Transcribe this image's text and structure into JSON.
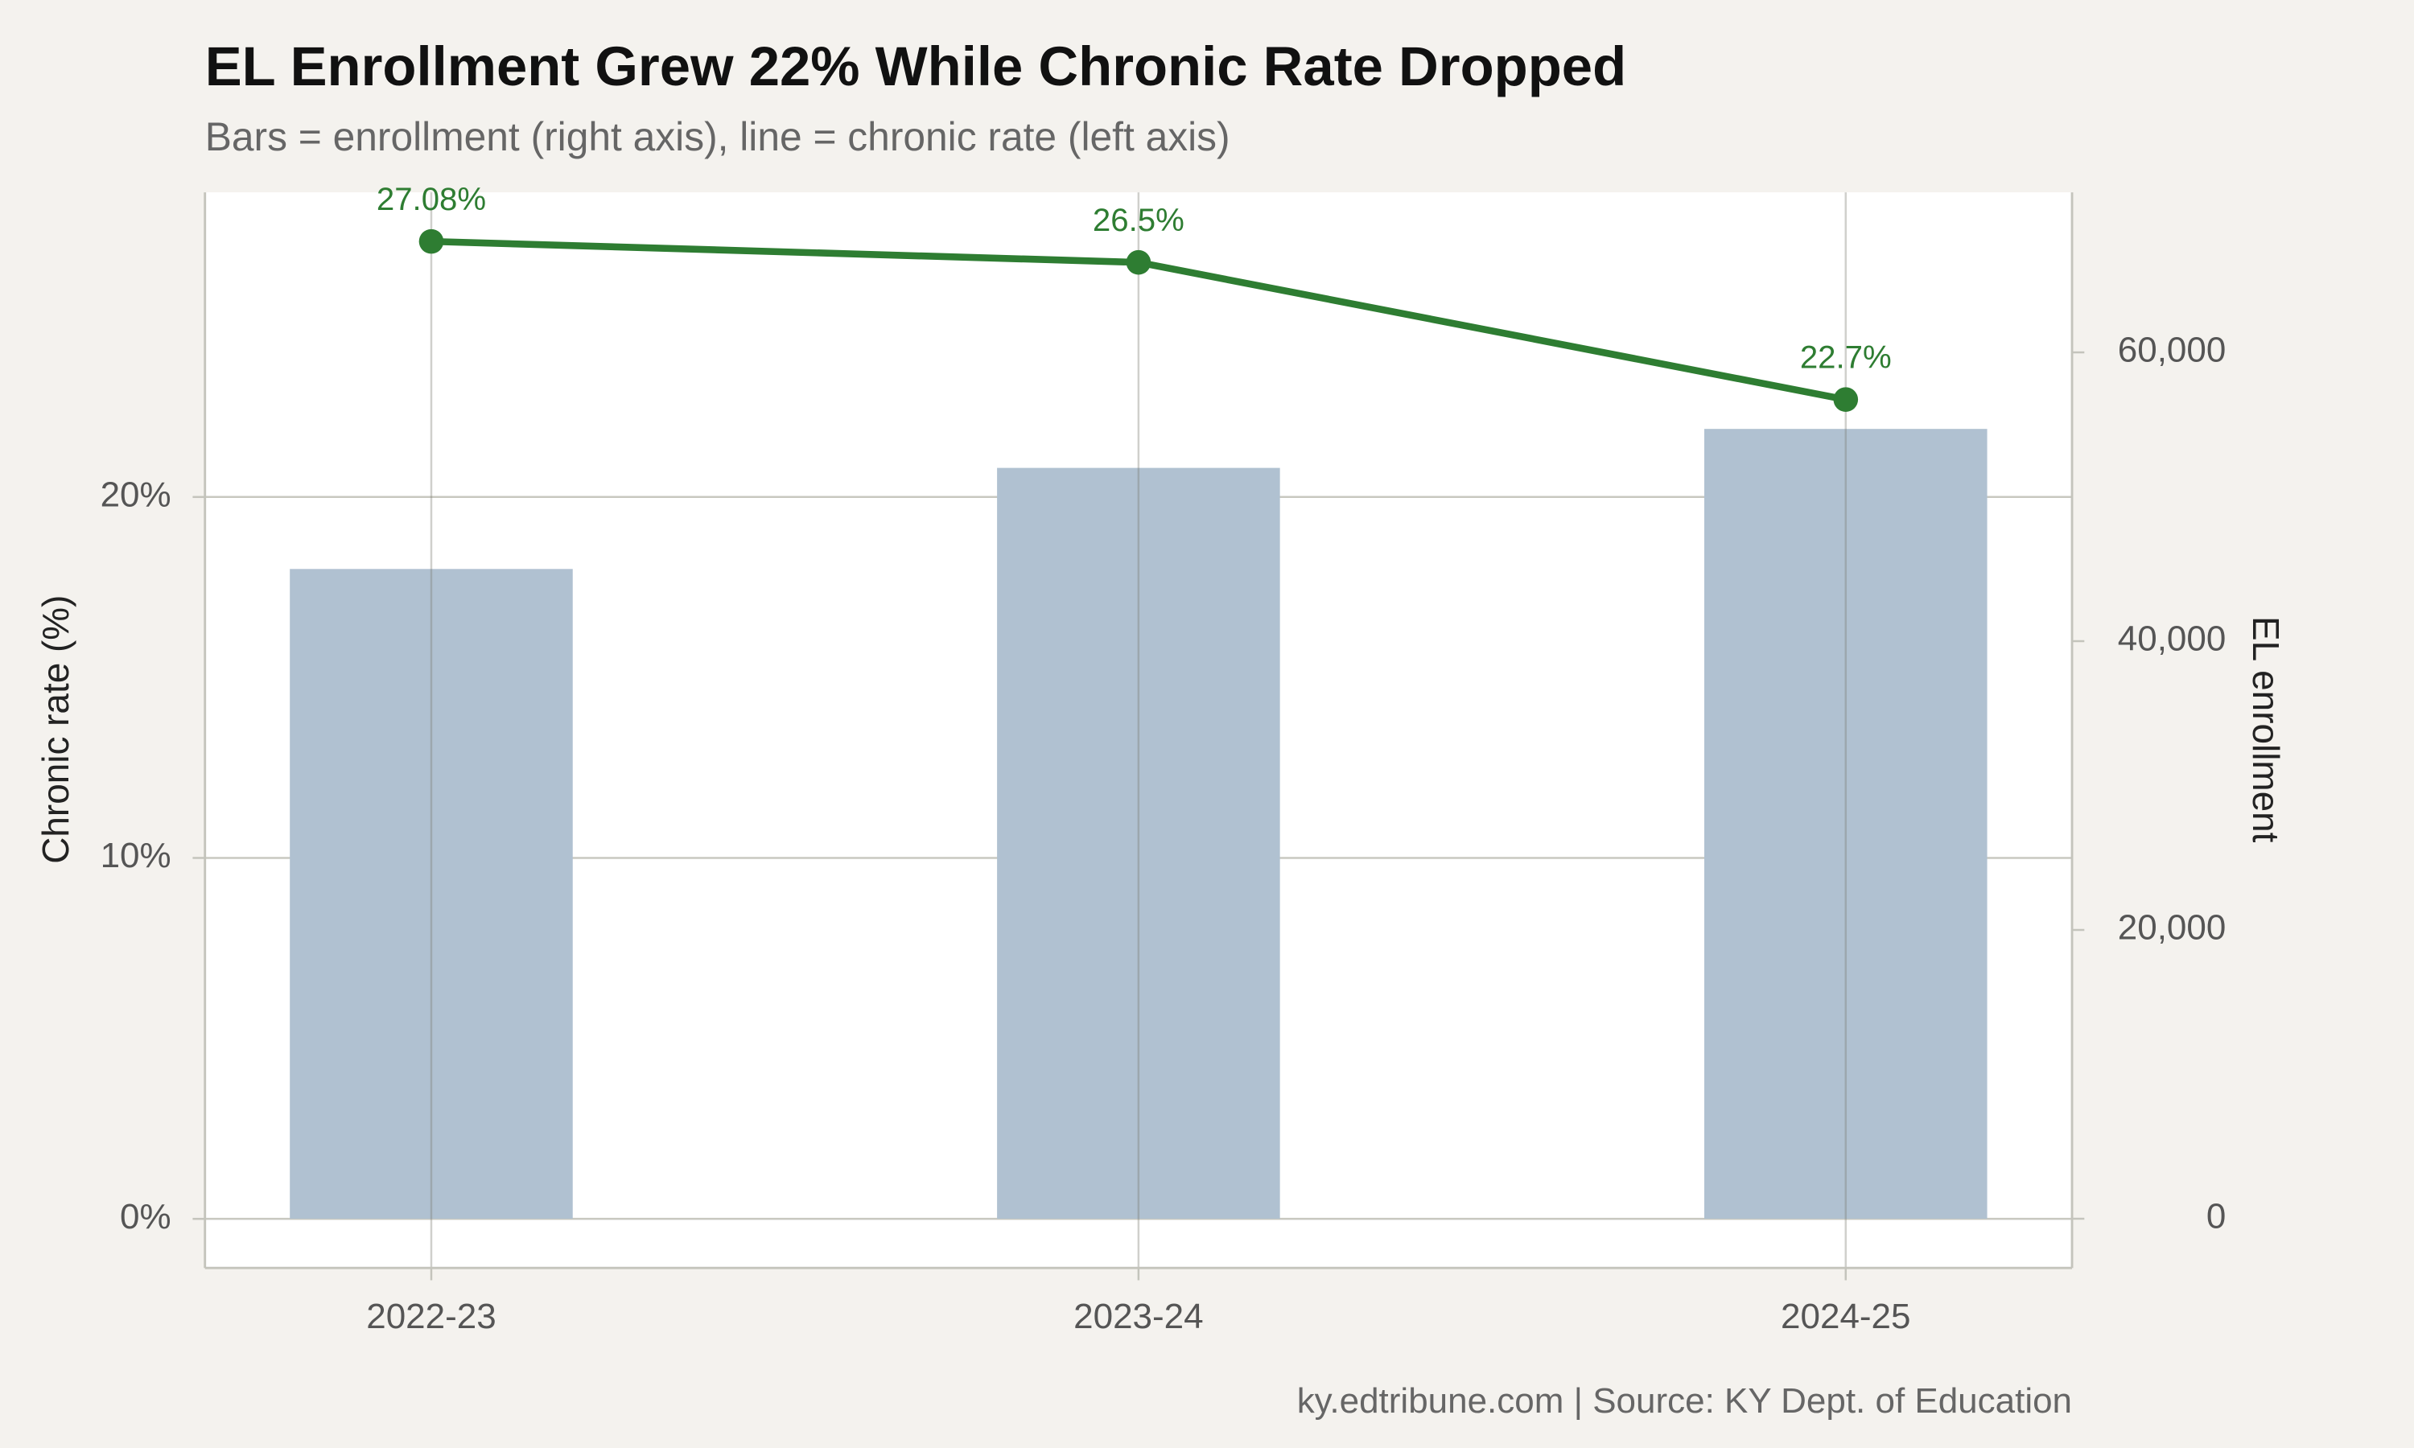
{
  "chart_data": {
    "type": "combo",
    "title": "EL Enrollment Grew 22% While Chronic Rate Dropped",
    "subtitle": "Bars = enrollment (right axis), line = chronic rate (left axis)",
    "ylabel": "Chronic rate (%)",
    "y2label": "EL enrollment",
    "caption": "ky.edtribune.com | Source: KY Dept. of Education",
    "categories": [
      "2022-23",
      "2023-24",
      "2024-25"
    ],
    "ylim": [
      -1.36,
      28.44
    ],
    "yticks": [
      {
        "value": 0,
        "label": "0%"
      },
      {
        "value": 10,
        "label": "10%"
      },
      {
        "value": 20,
        "label": "20%"
      }
    ],
    "y2lim": [
      -3410,
      71083
    ],
    "y2ticks": [
      0,
      {
        "value": 20000,
        "label": "20,000"
      },
      {
        "value": 40000,
        "label": "40,000"
      },
      {
        "value": 60000,
        "label": "60,000"
      }
    ],
    "grid": true,
    "series": [
      {
        "type": "bar",
        "axis": "y2",
        "color": "#b0c1d1",
        "values": [
          45000,
          52000,
          54700
        ]
      },
      {
        "type": "line",
        "color": "#2e7d32",
        "values": [
          27.08,
          26.5,
          22.7
        ],
        "value_labels": [
          "27.08%",
          "26.5%",
          "22.7%"
        ]
      }
    ]
  }
}
